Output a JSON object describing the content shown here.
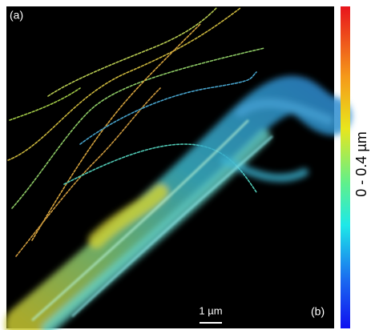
{
  "panel_labels": {
    "a": "(a)",
    "b": "(b)"
  },
  "scale_bar": {
    "label": "1 µm"
  },
  "colorbar": {
    "label": "0 - 0.4 µm"
  }
}
